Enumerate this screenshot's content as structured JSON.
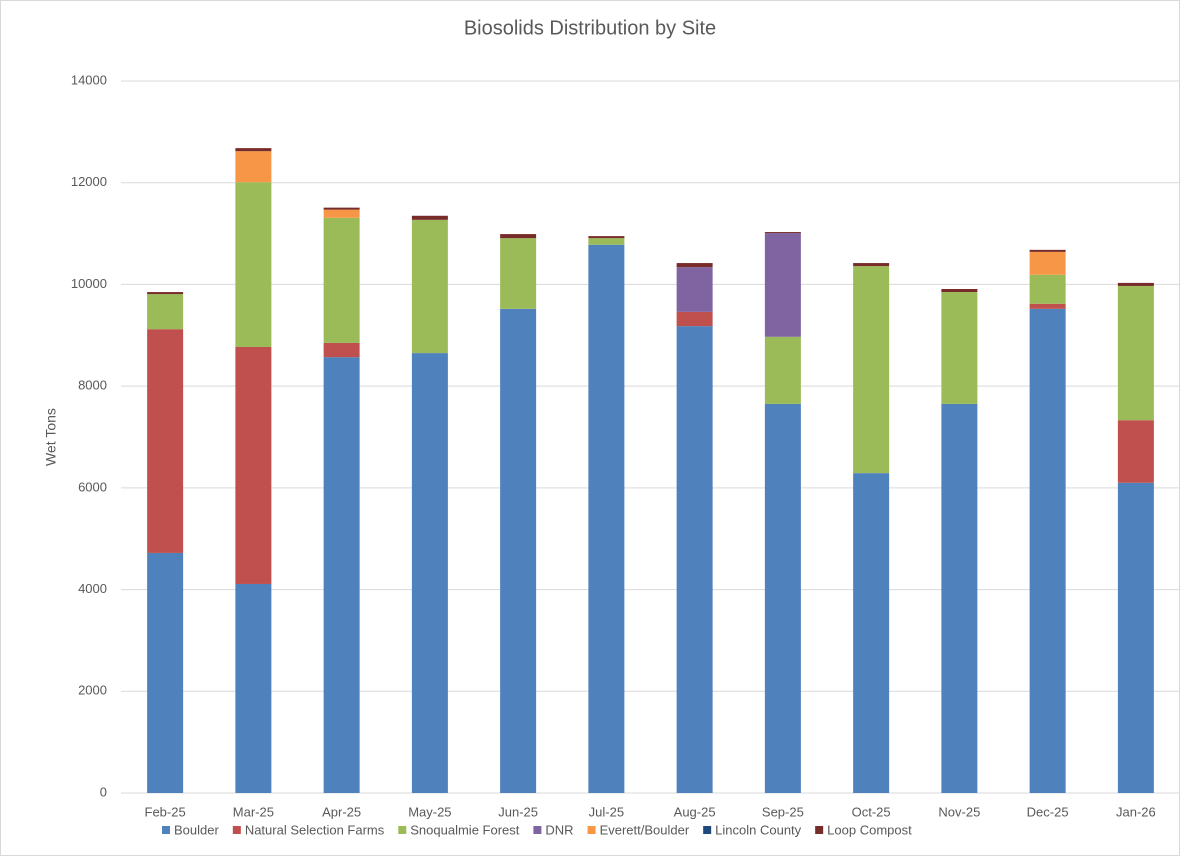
{
  "chart_data": {
    "type": "stacked_bar",
    "title": "Biosolids Distribution by Site",
    "y_label": "Wet Tons",
    "categories": [
      "Feb-25",
      "Mar-25",
      "Apr-25",
      "May-25",
      "Jun-25",
      "Jul-25",
      "Aug-25",
      "Sep-25",
      "Oct-25",
      "Nov-25",
      "Dec-25",
      "Jan-26"
    ],
    "series": [
      {
        "name": "Boulder",
        "color": "#4f81bd",
        "values": [
          4720,
          4110,
          8570,
          8650,
          9520,
          10780,
          9180,
          7650,
          6290,
          7650,
          9520,
          6100
        ]
      },
      {
        "name": "Natural Selection Farms",
        "color": "#c0504d",
        "values": [
          4400,
          4660,
          280,
          0,
          0,
          0,
          280,
          0,
          0,
          0,
          100,
          1230
        ]
      },
      {
        "name": "Snoqualmie Forest",
        "color": "#9bbb59",
        "values": [
          690,
          3240,
          2460,
          2620,
          1390,
          130,
          0,
          1320,
          4070,
          2200,
          570,
          2640
        ]
      },
      {
        "name": "DNR",
        "color": "#8064a2",
        "values": [
          0,
          0,
          0,
          0,
          0,
          0,
          880,
          2040,
          0,
          0,
          0,
          0
        ]
      },
      {
        "name": "Everett/Boulder",
        "color": "#f79646",
        "values": [
          0,
          610,
          160,
          0,
          0,
          0,
          0,
          0,
          0,
          0,
          450,
          0
        ]
      },
      {
        "name": "Lincoln County",
        "color": "#1f497d",
        "values": [
          0,
          0,
          0,
          0,
          0,
          0,
          0,
          0,
          0,
          0,
          0,
          0
        ]
      },
      {
        "name": "Loop Compost",
        "color": "#772c2a",
        "values": [
          40,
          60,
          40,
          80,
          80,
          40,
          80,
          20,
          60,
          60,
          40,
          60
        ]
      }
    ],
    "ylim": [
      0,
      14000
    ],
    "yticks": [
      0,
      2000,
      4000,
      6000,
      8000,
      10000,
      12000,
      14000
    ],
    "grid": true
  }
}
